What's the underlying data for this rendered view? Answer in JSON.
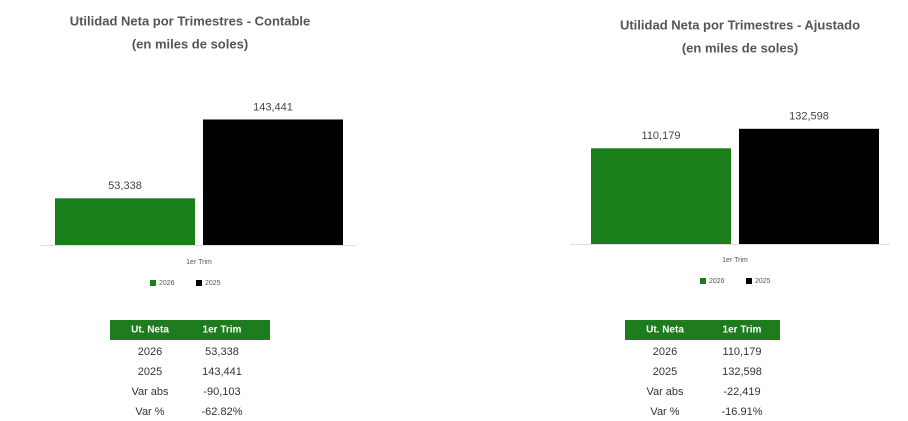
{
  "chart_data": [
    {
      "type": "bar",
      "title": "Utilidad Neta por Trimestres - Contable",
      "subtitle": "(en miles de soles)",
      "categories": [
        "1er Trim"
      ],
      "series": [
        {
          "name": "2026",
          "color": "#1a7f1a",
          "values": [
            53338
          ],
          "value_labels": [
            "53,338"
          ]
        },
        {
          "name": "2025",
          "color": "#000000",
          "values": [
            143441
          ],
          "value_labels": [
            "143,441"
          ]
        }
      ],
      "ylim": [
        0,
        160000
      ],
      "legend": "bottom"
    },
    {
      "type": "bar",
      "title": "Utilidad Neta por Trimestres - Ajustado",
      "subtitle": "(en miles de soles)",
      "categories": [
        "1er Trim"
      ],
      "series": [
        {
          "name": "2026",
          "color": "#1a7f1a",
          "values": [
            110179
          ],
          "value_labels": [
            "110,179"
          ]
        },
        {
          "name": "2025",
          "color": "#000000",
          "values": [
            132598
          ],
          "value_labels": [
            "132,598"
          ]
        }
      ],
      "ylim": [
        0,
        160000
      ],
      "legend": "bottom"
    }
  ],
  "tables": [
    {
      "header": [
        "Ut. Neta",
        "1er Trim"
      ],
      "rows": [
        [
          "2026",
          "53,338"
        ],
        [
          "2025",
          "143,441"
        ],
        [
          "Var abs",
          "-90,103"
        ],
        [
          "Var %",
          "-62.82%"
        ]
      ]
    },
    {
      "header": [
        "Ut. Neta",
        "1er Trim"
      ],
      "rows": [
        [
          "2026",
          "110,179"
        ],
        [
          "2025",
          "132,598"
        ],
        [
          "Var abs",
          "-22,419"
        ],
        [
          "Var %",
          "-16.91%"
        ]
      ]
    }
  ]
}
